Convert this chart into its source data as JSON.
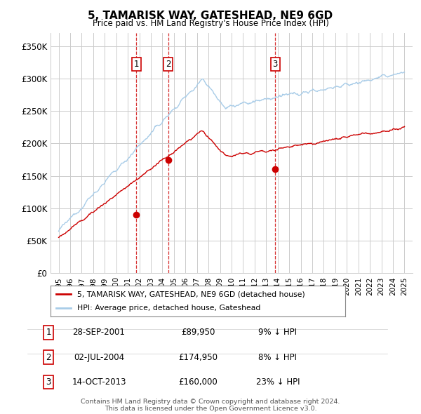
{
  "title": "5, TAMARISK WAY, GATESHEAD, NE9 6GD",
  "subtitle": "Price paid vs. HM Land Registry's House Price Index (HPI)",
  "hpi_color": "#a8cce8",
  "price_color": "#cc0000",
  "vline_color": "#cc0000",
  "background_color": "#ffffff",
  "grid_color": "#cccccc",
  "ylim": [
    0,
    370000
  ],
  "yticks": [
    0,
    50000,
    100000,
    150000,
    200000,
    250000,
    300000,
    350000
  ],
  "ytick_labels": [
    "£0",
    "£50K",
    "£100K",
    "£150K",
    "£200K",
    "£250K",
    "£300K",
    "£350K"
  ],
  "xlim": [
    1994.3,
    2025.7
  ],
  "xtick_years": [
    1995,
    1996,
    1997,
    1998,
    1999,
    2000,
    2001,
    2002,
    2003,
    2004,
    2005,
    2006,
    2007,
    2008,
    2009,
    2010,
    2011,
    2012,
    2013,
    2014,
    2015,
    2016,
    2017,
    2018,
    2019,
    2020,
    2021,
    2022,
    2023,
    2024,
    2025
  ],
  "sales": [
    {
      "label": "1",
      "date_num": 2001.75,
      "price": 89950,
      "date_str": "28-SEP-2001",
      "pct": "9%",
      "dir": "↓"
    },
    {
      "label": "2",
      "date_num": 2004.5,
      "price": 174950,
      "date_str": "02-JUL-2004",
      "pct": "8%",
      "dir": "↓"
    },
    {
      "label": "3",
      "date_num": 2013.79,
      "price": 160000,
      "date_str": "14-OCT-2013",
      "pct": "23%",
      "dir": "↓"
    }
  ],
  "legend_entries": [
    "5, TAMARISK WAY, GATESHEAD, NE9 6GD (detached house)",
    "HPI: Average price, detached house, Gateshead"
  ],
  "footer": "Contains HM Land Registry data © Crown copyright and database right 2024.\nThis data is licensed under the Open Government Licence v3.0."
}
